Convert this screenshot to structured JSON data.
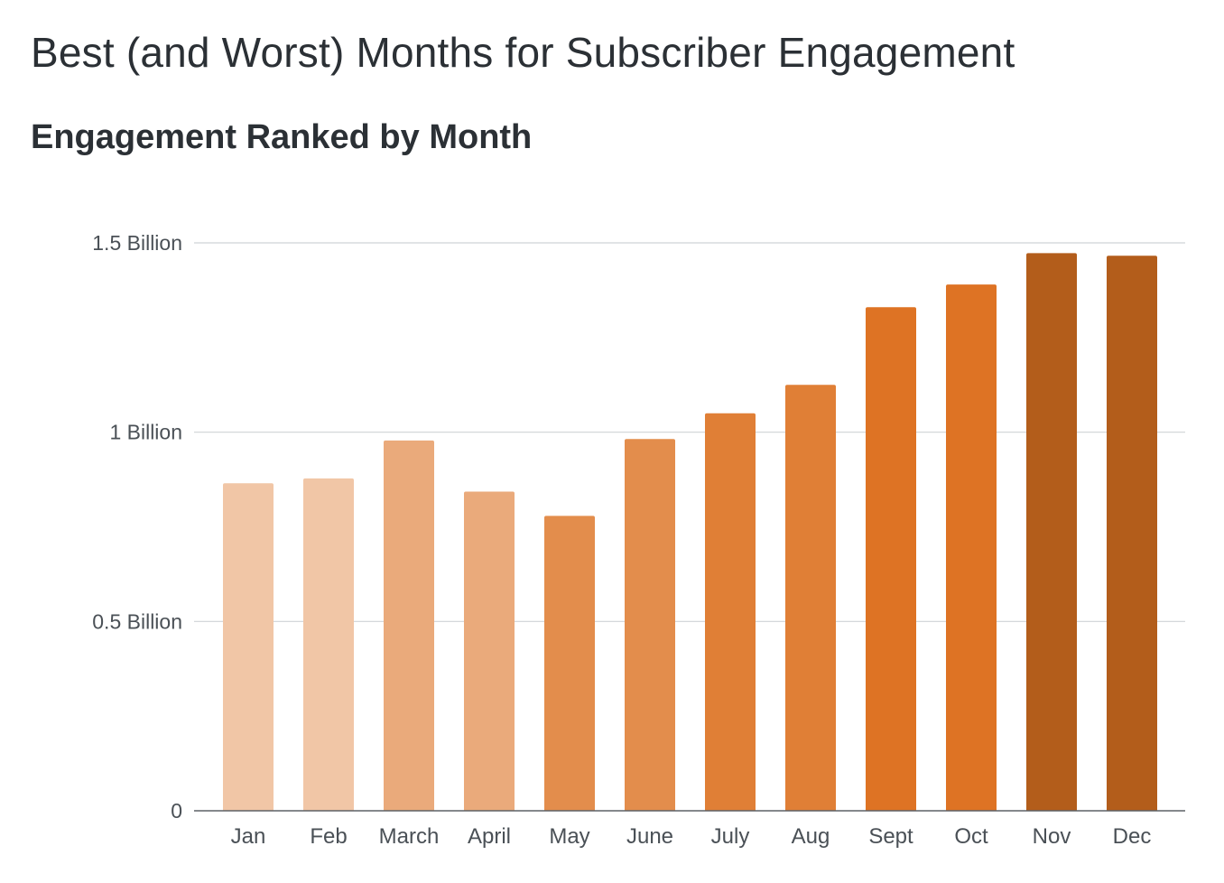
{
  "page": {
    "title": "Best (and Worst) Months for Subscriber Engagement"
  },
  "chart_data": {
    "type": "bar",
    "title": "Engagement Ranked by Month",
    "xlabel": "",
    "ylabel": "",
    "unit": "Billion",
    "ylim": [
      0,
      1.5
    ],
    "y_ticks": [
      {
        "value": 0,
        "label": "0"
      },
      {
        "value": 0.5,
        "label": "0.5 Billion"
      },
      {
        "value": 1.0,
        "label": "1 Billion"
      },
      {
        "value": 1.5,
        "label": "1.5 Billion"
      }
    ],
    "grid": true,
    "categories": [
      "Jan",
      "Feb",
      "March",
      "April",
      "May",
      "June",
      "July",
      "Aug",
      "Sept",
      "Oct",
      "Nov",
      "Dec"
    ],
    "values": [
      0.865,
      0.878,
      0.978,
      0.843,
      0.779,
      0.982,
      1.05,
      1.125,
      1.33,
      1.39,
      1.473,
      1.466
    ],
    "colors": [
      "#f1c6a6",
      "#f1c6a6",
      "#eaaa7b",
      "#eaaa7b",
      "#e38d4c",
      "#e38d4c",
      "#e07f36",
      "#e07f36",
      "#de7324",
      "#de7324",
      "#b35d1b",
      "#b35d1b"
    ]
  }
}
